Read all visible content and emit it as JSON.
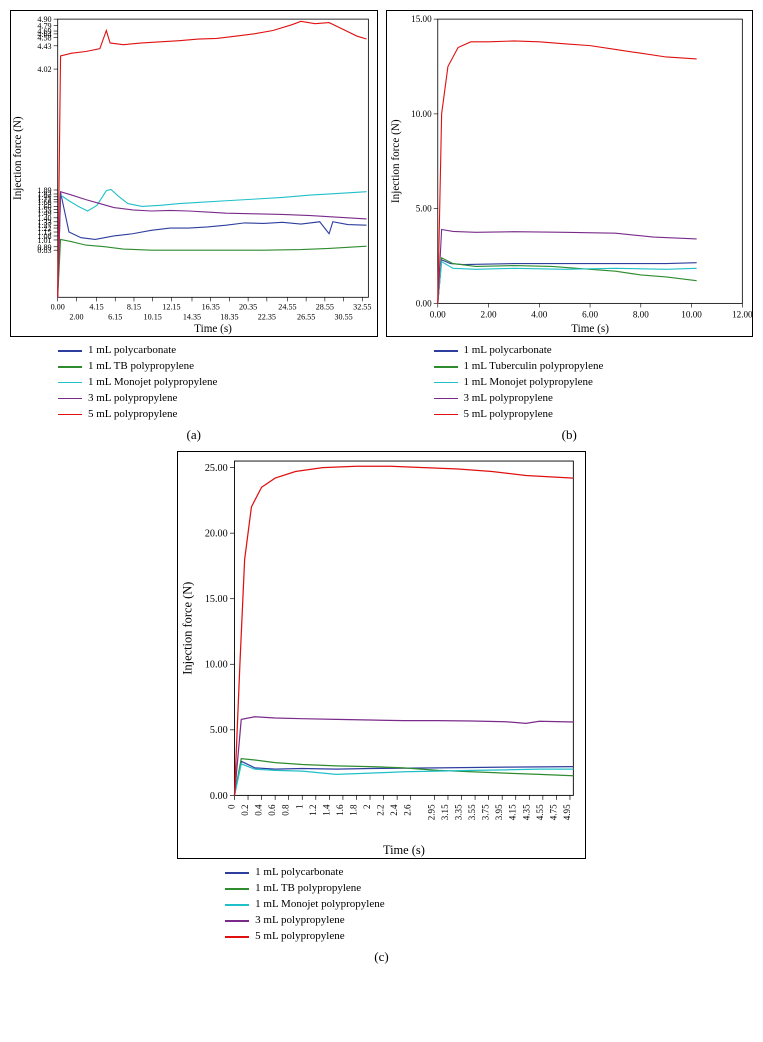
{
  "colors": {
    "polycarbonate": "#2e3e9e",
    "tb_pp": "#2e8b2e",
    "monojet_pp": "#20c0c8",
    "pp3": "#7a2b8a",
    "pp5": "#e01010",
    "axis": "#000000",
    "bg": "#ffffff"
  },
  "legend_common": {
    "items": [
      {
        "key": "polycarbonate",
        "label": "1 mL polycarbonate"
      },
      {
        "key": "tb_pp",
        "label": "1 mL TB polypropylene"
      },
      {
        "key": "monojet_pp",
        "label": "1 mL Monojet polypropylene"
      },
      {
        "key": "pp3",
        "label": "3 mL polypropylene"
      },
      {
        "key": "pp5",
        "label": "5 mL polypropylene"
      }
    ]
  },
  "legend_b": {
    "items": [
      {
        "key": "polycarbonate",
        "label": "1 mL polycarbonate"
      },
      {
        "key": "tb_pp",
        "label": "1 mL Tuberculin polypropylene"
      },
      {
        "key": "monojet_pp",
        "label": "1 mL Monojet polypropylene"
      },
      {
        "key": "pp3",
        "label": "3 mL polypropylene"
      },
      {
        "key": "pp5",
        "label": "5 mL polypropylene"
      }
    ]
  },
  "panel_a": {
    "sublabel": "(a)",
    "xlabel": "Time (s)",
    "ylabel": "Injection force (N)",
    "xlim": [
      0,
      33.2
    ],
    "ylim": [
      0,
      4.9
    ],
    "xticks_top": [
      "0.00",
      "4.15",
      "8.15",
      "12.15",
      "16.35",
      "20.35",
      "24.55",
      "28.55",
      "32.55"
    ],
    "xticks_bottom": [
      "2.00",
      "6.15",
      "10.15",
      "14.35",
      "18.35",
      "22.35",
      "26.55",
      "30.55"
    ],
    "yticks": [
      "0.83",
      "0.89",
      "1.01",
      "1.08",
      "1.15",
      "1.22",
      "1.27",
      "1.33",
      "1.40",
      "1.49",
      "1.55",
      "1.60",
      "1.68",
      "1.72",
      "1.77",
      "1.82",
      "1.89",
      "4.02",
      "4.43",
      "4.58",
      "4.64",
      "4.69",
      "4.79",
      "4.90"
    ],
    "series": {
      "polycarbonate": [
        [
          0,
          0
        ],
        [
          0.3,
          1.85
        ],
        [
          1.2,
          1.15
        ],
        [
          2.5,
          1.05
        ],
        [
          4,
          1.02
        ],
        [
          6,
          1.08
        ],
        [
          8,
          1.12
        ],
        [
          10,
          1.18
        ],
        [
          12,
          1.22
        ],
        [
          14,
          1.22
        ],
        [
          16,
          1.24
        ],
        [
          18,
          1.27
        ],
        [
          20,
          1.31
        ],
        [
          22,
          1.3
        ],
        [
          24,
          1.32
        ],
        [
          26,
          1.29
        ],
        [
          28,
          1.33
        ],
        [
          29,
          1.12
        ],
        [
          29.4,
          1.33
        ],
        [
          31,
          1.28
        ],
        [
          33,
          1.27
        ]
      ],
      "tb_pp": [
        [
          0,
          0
        ],
        [
          0.3,
          1.02
        ],
        [
          1.5,
          0.98
        ],
        [
          3,
          0.92
        ],
        [
          5,
          0.89
        ],
        [
          7,
          0.85
        ],
        [
          10,
          0.83
        ],
        [
          14,
          0.83
        ],
        [
          18,
          0.83
        ],
        [
          22,
          0.83
        ],
        [
          26,
          0.84
        ],
        [
          29,
          0.86
        ],
        [
          31,
          0.88
        ],
        [
          33,
          0.9
        ]
      ],
      "monojet_pp": [
        [
          0,
          0
        ],
        [
          0.3,
          1.8
        ],
        [
          1.2,
          1.7
        ],
        [
          2.2,
          1.6
        ],
        [
          3.2,
          1.52
        ],
        [
          4.2,
          1.62
        ],
        [
          5.2,
          1.88
        ],
        [
          5.7,
          1.9
        ],
        [
          6.5,
          1.78
        ],
        [
          7.5,
          1.65
        ],
        [
          9,
          1.6
        ],
        [
          11,
          1.62
        ],
        [
          13,
          1.65
        ],
        [
          15,
          1.67
        ],
        [
          18,
          1.7
        ],
        [
          21,
          1.73
        ],
        [
          24,
          1.76
        ],
        [
          27,
          1.8
        ],
        [
          30,
          1.83
        ],
        [
          33,
          1.86
        ]
      ],
      "pp3": [
        [
          0,
          0
        ],
        [
          0.3,
          1.86
        ],
        [
          1.5,
          1.8
        ],
        [
          3,
          1.72
        ],
        [
          4.5,
          1.65
        ],
        [
          6,
          1.58
        ],
        [
          8,
          1.54
        ],
        [
          10,
          1.52
        ],
        [
          12,
          1.53
        ],
        [
          14,
          1.52
        ],
        [
          16,
          1.5
        ],
        [
          18,
          1.48
        ],
        [
          21,
          1.47
        ],
        [
          24,
          1.46
        ],
        [
          27,
          1.44
        ],
        [
          29,
          1.42
        ],
        [
          31,
          1.4
        ],
        [
          33,
          1.38
        ]
      ],
      "pp5": [
        [
          0,
          0
        ],
        [
          0.3,
          4.25
        ],
        [
          1.5,
          4.3
        ],
        [
          3,
          4.33
        ],
        [
          4.5,
          4.38
        ],
        [
          5.2,
          4.7
        ],
        [
          5.6,
          4.48
        ],
        [
          7,
          4.45
        ],
        [
          9,
          4.48
        ],
        [
          11,
          4.5
        ],
        [
          13,
          4.52
        ],
        [
          15,
          4.55
        ],
        [
          17,
          4.56
        ],
        [
          19,
          4.6
        ],
        [
          21,
          4.64
        ],
        [
          23,
          4.7
        ],
        [
          25,
          4.8
        ],
        [
          26,
          4.86
        ],
        [
          27.5,
          4.82
        ],
        [
          29,
          4.84
        ],
        [
          30.5,
          4.72
        ],
        [
          32,
          4.6
        ],
        [
          33,
          4.55
        ]
      ]
    }
  },
  "panel_b": {
    "sublabel": "(b)",
    "xlabel": "Time (s)",
    "ylabel": "Injection force (N)",
    "xlim": [
      0,
      12
    ],
    "ylim": [
      0,
      15
    ],
    "xticks": [
      "0.00",
      "2.00",
      "4.00",
      "6.00",
      "8.00",
      "10.00",
      "12.00"
    ],
    "yticks": [
      "0.00",
      "5.00",
      "10.00",
      "15.00"
    ],
    "series": {
      "polycarbonate": [
        [
          0,
          0
        ],
        [
          0.15,
          2.3
        ],
        [
          0.5,
          2.1
        ],
        [
          1,
          2.05
        ],
        [
          3,
          2.1
        ],
        [
          5,
          2.1
        ],
        [
          7,
          2.1
        ],
        [
          9,
          2.1
        ],
        [
          10.2,
          2.15
        ]
      ],
      "tb_pp": [
        [
          0,
          0
        ],
        [
          0.15,
          2.4
        ],
        [
          0.6,
          2.1
        ],
        [
          1.5,
          1.95
        ],
        [
          3,
          2.0
        ],
        [
          4.5,
          1.95
        ],
        [
          6,
          1.8
        ],
        [
          7,
          1.7
        ],
        [
          8,
          1.5
        ],
        [
          9,
          1.4
        ],
        [
          10.2,
          1.2
        ]
      ],
      "monojet_pp": [
        [
          0,
          0
        ],
        [
          0.15,
          2.2
        ],
        [
          0.6,
          1.85
        ],
        [
          1.5,
          1.8
        ],
        [
          3,
          1.85
        ],
        [
          5,
          1.8
        ],
        [
          7,
          1.85
        ],
        [
          9,
          1.8
        ],
        [
          10.2,
          1.85
        ]
      ],
      "pp3": [
        [
          0,
          0
        ],
        [
          0.15,
          3.9
        ],
        [
          0.6,
          3.8
        ],
        [
          1.5,
          3.75
        ],
        [
          3,
          3.78
        ],
        [
          5,
          3.75
        ],
        [
          7,
          3.7
        ],
        [
          8.5,
          3.5
        ],
        [
          10.2,
          3.4
        ]
      ],
      "pp5": [
        [
          0,
          0
        ],
        [
          0.15,
          10
        ],
        [
          0.4,
          12.5
        ],
        [
          0.8,
          13.5
        ],
        [
          1.3,
          13.8
        ],
        [
          2,
          13.8
        ],
        [
          3,
          13.85
        ],
        [
          4,
          13.8
        ],
        [
          5,
          13.7
        ],
        [
          6,
          13.6
        ],
        [
          7,
          13.4
        ],
        [
          8,
          13.2
        ],
        [
          9,
          13.0
        ],
        [
          10.2,
          12.9
        ]
      ]
    }
  },
  "panel_c": {
    "sublabel": "(c)",
    "xlabel": "Time (s)",
    "ylabel": "Injection force (N)",
    "xlim": [
      0,
      5.0
    ],
    "ylim": [
      0,
      25.5
    ],
    "xticks": [
      "0",
      "0.2",
      "0.4",
      "0.6",
      "0.8",
      "1",
      "1.2",
      "1.4",
      "1.6",
      "1.8",
      "2",
      "2.2",
      "2.4",
      "2.6",
      "2.95",
      "3.15",
      "3.35",
      "3.55",
      "3.75",
      "3.95",
      "4.15",
      "4.35",
      "4.55",
      "4.75",
      "4.95"
    ],
    "yticks": [
      "0.00",
      "5.00",
      "10.00",
      "15.00",
      "20.00",
      "25.00"
    ],
    "series": {
      "polycarbonate": [
        [
          0,
          0
        ],
        [
          0.1,
          2.6
        ],
        [
          0.3,
          2.1
        ],
        [
          0.6,
          2.0
        ],
        [
          1,
          2.05
        ],
        [
          1.5,
          2.0
        ],
        [
          2,
          2.05
        ],
        [
          3,
          2.1
        ],
        [
          4,
          2.15
        ],
        [
          5,
          2.2
        ]
      ],
      "tb_pp": [
        [
          0,
          0
        ],
        [
          0.1,
          2.8
        ],
        [
          0.3,
          2.7
        ],
        [
          0.6,
          2.5
        ],
        [
          1,
          2.35
        ],
        [
          1.5,
          2.25
        ],
        [
          2,
          2.2
        ],
        [
          2.5,
          2.1
        ],
        [
          3,
          1.9
        ],
        [
          3.5,
          1.8
        ],
        [
          4,
          1.7
        ],
        [
          4.5,
          1.6
        ],
        [
          5,
          1.5
        ]
      ],
      "monojet_pp": [
        [
          0,
          0
        ],
        [
          0.1,
          2.4
        ],
        [
          0.3,
          2.0
        ],
        [
          0.6,
          1.9
        ],
        [
          1,
          1.85
        ],
        [
          1.5,
          1.6
        ],
        [
          2,
          1.7
        ],
        [
          2.5,
          1.8
        ],
        [
          3,
          1.85
        ],
        [
          3.5,
          1.9
        ],
        [
          4,
          1.95
        ],
        [
          4.5,
          2.0
        ],
        [
          5,
          2.0
        ]
      ],
      "pp3": [
        [
          0,
          0
        ],
        [
          0.1,
          5.8
        ],
        [
          0.3,
          6.0
        ],
        [
          0.6,
          5.9
        ],
        [
          1,
          5.85
        ],
        [
          1.5,
          5.8
        ],
        [
          2,
          5.75
        ],
        [
          2.5,
          5.7
        ],
        [
          3,
          5.7
        ],
        [
          3.5,
          5.68
        ],
        [
          4,
          5.62
        ],
        [
          4.3,
          5.5
        ],
        [
          4.5,
          5.65
        ],
        [
          5,
          5.6
        ]
      ],
      "pp5": [
        [
          0,
          0
        ],
        [
          0.08,
          10
        ],
        [
          0.15,
          18
        ],
        [
          0.25,
          22
        ],
        [
          0.4,
          23.5
        ],
        [
          0.6,
          24.2
        ],
        [
          0.9,
          24.7
        ],
        [
          1.3,
          25.0
        ],
        [
          1.8,
          25.1
        ],
        [
          2.3,
          25.1
        ],
        [
          2.8,
          25.0
        ],
        [
          3.3,
          24.9
        ],
        [
          3.8,
          24.7
        ],
        [
          4.3,
          24.4
        ],
        [
          5,
          24.2
        ]
      ]
    }
  }
}
